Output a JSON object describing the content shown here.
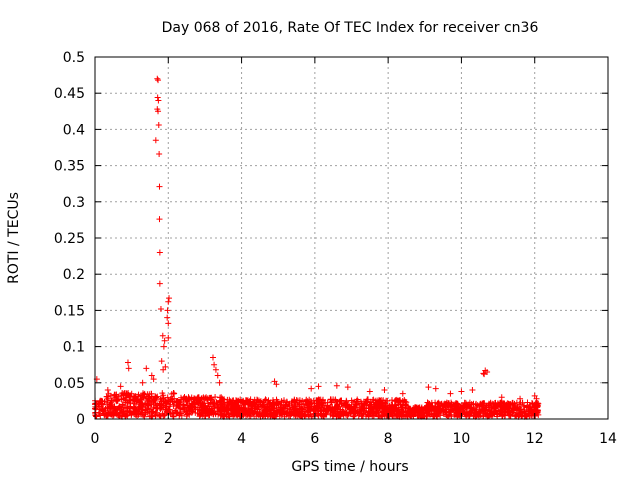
{
  "chart_data": {
    "type": "scatter",
    "title": "Day 068 of 2016, Rate Of TEC Index for receiver cn36",
    "xlabel": "GPS time / hours",
    "ylabel": "ROTI / TECUs",
    "xlim": [
      0,
      14
    ],
    "ylim": [
      0,
      0.5
    ],
    "x_ticks": [
      0,
      2,
      4,
      6,
      8,
      10,
      12,
      14
    ],
    "y_ticks": [
      0,
      0.05,
      0.1,
      0.15,
      0.2,
      0.25,
      0.3,
      0.35,
      0.4,
      0.45,
      0.5
    ],
    "x_tick_labels": [
      "0",
      "2",
      "4",
      "6",
      "8",
      "10",
      "12",
      "14"
    ],
    "y_tick_labels": [
      "0",
      "0.05",
      "0.1",
      "0.15",
      "0.2",
      "0.25",
      "0.3",
      "0.35",
      "0.4",
      "0.45",
      "0.5"
    ],
    "grid": true,
    "marker": "+",
    "marker_color": "#ff0000",
    "series": [
      {
        "name": "ROTI",
        "points": [
          [
            1.7,
            0.47
          ],
          [
            1.72,
            0.468
          ],
          [
            1.71,
            0.444
          ],
          [
            1.73,
            0.44
          ],
          [
            1.7,
            0.428
          ],
          [
            1.72,
            0.425
          ],
          [
            1.74,
            0.406
          ],
          [
            1.66,
            0.385
          ],
          [
            1.75,
            0.366
          ],
          [
            1.76,
            0.321
          ],
          [
            1.76,
            0.276
          ],
          [
            1.77,
            0.23
          ],
          [
            1.77,
            0.187
          ],
          [
            1.8,
            0.152
          ],
          [
            2.02,
            0.167
          ],
          [
            2.0,
            0.162
          ],
          [
            1.98,
            0.15
          ],
          [
            1.97,
            0.14
          ],
          [
            2.0,
            0.132
          ],
          [
            1.85,
            0.115
          ],
          [
            1.9,
            0.108
          ],
          [
            1.88,
            0.1
          ],
          [
            2.0,
            0.112
          ],
          [
            1.82,
            0.08
          ],
          [
            1.86,
            0.068
          ],
          [
            1.92,
            0.072
          ],
          [
            3.22,
            0.085
          ],
          [
            3.25,
            0.075
          ],
          [
            3.3,
            0.068
          ],
          [
            3.35,
            0.06
          ],
          [
            3.4,
            0.05
          ],
          [
            10.6,
            0.063
          ],
          [
            10.65,
            0.067
          ],
          [
            10.7,
            0.065
          ],
          [
            10.62,
            0.062
          ],
          [
            0.05,
            0.055
          ],
          [
            0.9,
            0.078
          ],
          [
            0.92,
            0.07
          ],
          [
            1.4,
            0.07
          ],
          [
            1.55,
            0.06
          ],
          [
            1.6,
            0.055
          ],
          [
            1.3,
            0.05
          ],
          [
            0.7,
            0.045
          ],
          [
            0.35,
            0.04
          ],
          [
            4.9,
            0.052
          ],
          [
            4.95,
            0.048
          ],
          [
            5.9,
            0.042
          ],
          [
            6.1,
            0.045
          ],
          [
            6.6,
            0.046
          ],
          [
            6.9,
            0.044
          ],
          [
            7.5,
            0.038
          ],
          [
            7.9,
            0.04
          ],
          [
            8.4,
            0.035
          ],
          [
            9.1,
            0.044
          ],
          [
            9.3,
            0.042
          ],
          [
            9.7,
            0.035
          ],
          [
            10.0,
            0.038
          ],
          [
            10.3,
            0.04
          ],
          [
            11.1,
            0.03
          ],
          [
            11.6,
            0.028
          ],
          [
            12.0,
            0.032
          ],
          [
            12.05,
            0.028
          ],
          [
            12.08,
            0.022
          ]
        ]
      }
    ]
  }
}
